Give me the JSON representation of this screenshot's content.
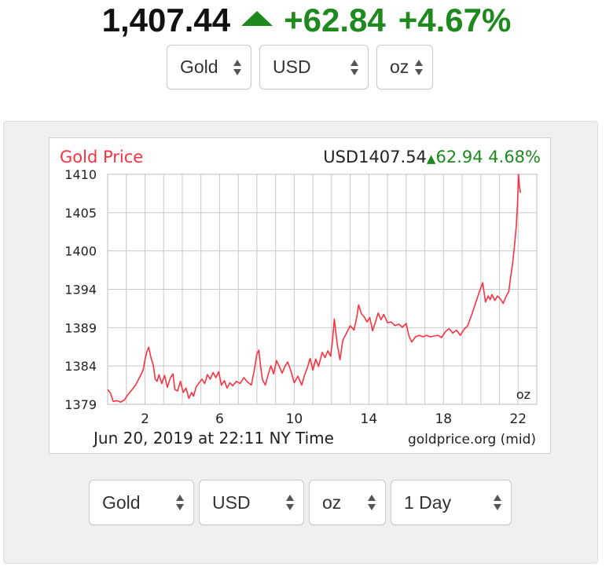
{
  "header": {
    "price": "1,407.44",
    "change": "+62.84",
    "change_pct": "+4.67%"
  },
  "top_selects": {
    "metal": "Gold",
    "currency": "USD",
    "unit": "oz"
  },
  "bottom_selects": {
    "metal": "Gold",
    "currency": "USD",
    "unit": "oz",
    "range": "1 Day"
  },
  "colors": {
    "up_green": "#1e8a1e",
    "line_red": "#ff3040",
    "grid": "#c8c8c8"
  },
  "chart_data": {
    "type": "line",
    "title": "Gold Price",
    "currency": "USD",
    "price": "1407.54",
    "change": "62.94",
    "change_pct": "4.68%",
    "unit_label": "oz",
    "footer_left": "Jun 20, 2019 at 22:11 NY Time",
    "footer_right": "goldprice.org (mid)",
    "xlim": [
      0,
      23
    ],
    "ylim": [
      1379,
      1410
    ],
    "y_ticks": [
      "1410",
      "1405",
      "1400",
      "1394",
      "1389",
      "1384",
      "1379"
    ],
    "x_ticks": [
      "2",
      "6",
      "10",
      "14",
      "18",
      "22"
    ],
    "x_tick_values": [
      2,
      6,
      10,
      14,
      18,
      22
    ],
    "grid": true,
    "series": [
      {
        "x": [
          0,
          0.15,
          0.3,
          0.5,
          0.7,
          0.9,
          1.05,
          1.25,
          1.5,
          1.7,
          1.9,
          2.0,
          2.1,
          2.2,
          2.3,
          2.45,
          2.55,
          2.65,
          2.75,
          2.9,
          3.05,
          3.2,
          3.35,
          3.5,
          3.6,
          3.75,
          3.9,
          4.05,
          4.2,
          4.35,
          4.5,
          4.6,
          4.75,
          4.9,
          5.05,
          5.2,
          5.35,
          5.5,
          5.65,
          5.8,
          5.95,
          6.1,
          6.25,
          6.4,
          6.55,
          6.7,
          6.9,
          7.1,
          7.3,
          7.5,
          7.7,
          7.85,
          8.0,
          8.1,
          8.2,
          8.3,
          8.45,
          8.6,
          8.75,
          8.9,
          9.05,
          9.2,
          9.35,
          9.5,
          9.65,
          9.8,
          10.0,
          10.2,
          10.4,
          10.55,
          10.7,
          10.85,
          11.0,
          11.15,
          11.3,
          11.5,
          11.65,
          11.8,
          11.95,
          12.05,
          12.15,
          12.3,
          12.45,
          12.6,
          12.8,
          13.0,
          13.2,
          13.35,
          13.45,
          13.6,
          13.75,
          13.9,
          14.05,
          14.2,
          14.35,
          14.5,
          14.65,
          14.8,
          15.0,
          15.2,
          15.4,
          15.6,
          15.8,
          16.0,
          16.15,
          16.3,
          16.5,
          16.7,
          16.9,
          17.1,
          17.3,
          17.5,
          17.7,
          17.9,
          18.1,
          18.3,
          18.5,
          18.7,
          18.9,
          19.1,
          19.3,
          19.5,
          19.7,
          19.9,
          20.1,
          20.25,
          20.4,
          20.5,
          20.6,
          20.75,
          20.9,
          21.05,
          21.2,
          21.35,
          21.5,
          21.6,
          21.7,
          21.8,
          21.9,
          21.97,
          22.02,
          22.07,
          22.13
        ],
        "y": [
          1381.0,
          1380.5,
          1379.4,
          1379.5,
          1379.3,
          1379.6,
          1380.2,
          1380.8,
          1381.6,
          1382.6,
          1383.6,
          1385.0,
          1386.1,
          1386.7,
          1385.5,
          1384.2,
          1382.4,
          1382.1,
          1383.0,
          1381.8,
          1382.9,
          1381.3,
          1382.5,
          1383.1,
          1381.0,
          1380.8,
          1382.1,
          1380.6,
          1381.2,
          1379.8,
          1380.6,
          1380.1,
          1381.4,
          1381.9,
          1382.4,
          1381.8,
          1383.0,
          1382.4,
          1383.3,
          1382.6,
          1383.4,
          1381.6,
          1382.2,
          1381.2,
          1381.9,
          1381.5,
          1382.1,
          1381.8,
          1382.6,
          1382.0,
          1381.6,
          1383.5,
          1385.8,
          1386.3,
          1384.0,
          1382.3,
          1381.6,
          1383.0,
          1384.2,
          1383.1,
          1384.9,
          1384.1,
          1383.2,
          1384.1,
          1384.7,
          1383.7,
          1381.9,
          1382.8,
          1381.6,
          1382.9,
          1383.9,
          1385.2,
          1383.6,
          1385.1,
          1384.1,
          1386.0,
          1385.3,
          1386.2,
          1385.5,
          1387.6,
          1390.5,
          1387.2,
          1385.0,
          1387.6,
          1388.6,
          1389.6,
          1389.0,
          1390.7,
          1392.4,
          1391.2,
          1390.8,
          1390.1,
          1390.7,
          1388.9,
          1390.1,
          1391.3,
          1390.4,
          1391.1,
          1390.0,
          1390.1,
          1389.6,
          1389.8,
          1389.4,
          1389.9,
          1388.2,
          1387.4,
          1388.1,
          1388.3,
          1388.1,
          1388.3,
          1388.1,
          1388.2,
          1388.3,
          1388.0,
          1388.8,
          1389.2,
          1388.6,
          1389.0,
          1388.3,
          1389.1,
          1389.6,
          1391.0,
          1392.5,
          1394.0,
          1395.4,
          1392.8,
          1393.6,
          1393.1,
          1393.8,
          1393.0,
          1393.6,
          1393.2,
          1392.6,
          1393.5,
          1394.2,
          1396.2,
          1397.8,
          1400.2,
          1403.0,
          1406.0,
          1410.0,
          1408.4,
          1407.5
        ]
      }
    ]
  }
}
